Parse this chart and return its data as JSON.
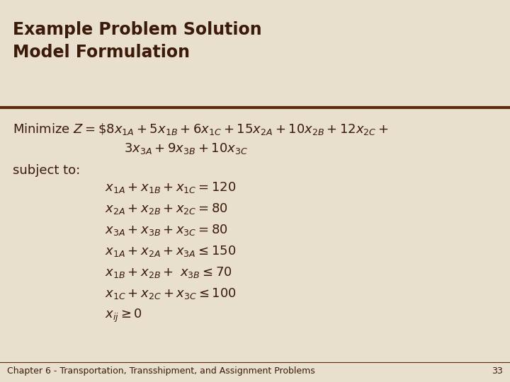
{
  "title_line1": "Example Problem Solution",
  "title_line2": "Model Formulation",
  "bg_color": "#e8e0cc",
  "title_color": "#3b1a0a",
  "text_color": "#3b1a0a",
  "separator_color": "#5c2a0a",
  "footer_text": "Chapter 6 - Transportation, Transshipment, and Assignment Problems",
  "page_number": "33",
  "title_fontsize": 17,
  "body_fontsize": 13,
  "footer_fontsize": 9,
  "minimize_line1": "Minimize $Z = \\$8x_{1A} + 5x_{1B} + 6x_{1C} + 15x_{2A} + 10x_{2B} + 12x_{2C} +$",
  "minimize_line2": "$3x_{3A} + 9x_{3B} + 10x_{3C}$",
  "subject_to": "subject to:",
  "constraints": [
    "$x_{1A} + x_{1B} + x_{1C} = 120$",
    "$x_{2A} + x_{2B} + x_{2C} = 80$",
    "$x_{3A} + x_{3B} + x_{3C} = 80$",
    "$x_{1A} + x_{2A} + x_{3A} \\leq 150$",
    "$x_{1B} + x_{2B} +\\ x_{3B} \\leq 70$",
    "$x_{1C} + x_{2C} + x_{3C} \\leq 100$",
    "$x_{ij} \\geq 0$"
  ]
}
